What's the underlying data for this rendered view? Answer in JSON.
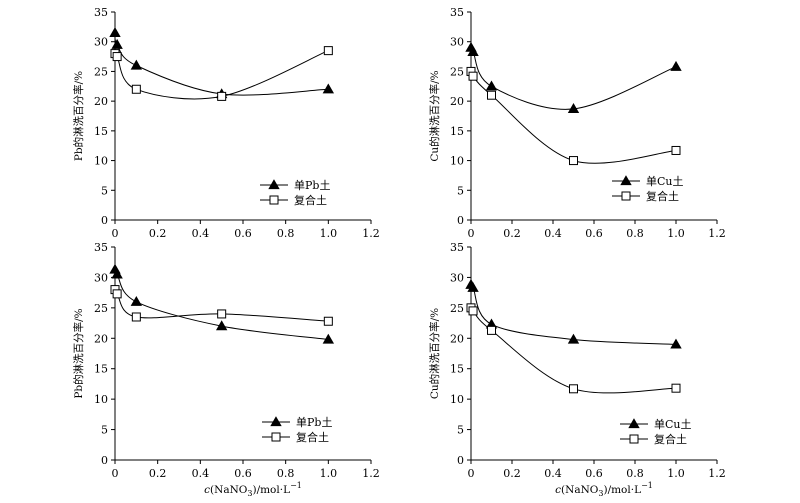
{
  "chart_data": [
    {
      "type": "line",
      "ylabel": "Pb的淋洗百分率/%",
      "xlabel": "",
      "xlim": [
        0,
        1.2
      ],
      "ylim": [
        0,
        35
      ],
      "xticks": [
        "0",
        "0.2",
        "0.4",
        "0.6",
        "0.8",
        "1.0",
        "1.2"
      ],
      "yticks": [
        "0",
        "5",
        "10",
        "15",
        "20",
        "25",
        "30",
        "35"
      ],
      "legend_position": "bottom-right",
      "series": [
        {
          "name": "单Pb土",
          "marker": "filled-triangle",
          "x": [
            0,
            0.01,
            0.1,
            0.5,
            1.0
          ],
          "y": [
            31.5,
            29.5,
            26.0,
            21.2,
            22.0
          ]
        },
        {
          "name": "复合土",
          "marker": "open-square",
          "x": [
            0,
            0.01,
            0.1,
            0.5,
            1.0
          ],
          "y": [
            28.0,
            27.5,
            22.0,
            20.8,
            28.5
          ]
        }
      ]
    },
    {
      "type": "line",
      "ylabel": "Cu的淋洗百分率/%",
      "xlabel": "",
      "xlim": [
        0,
        1.2
      ],
      "ylim": [
        0,
        35
      ],
      "xticks": [
        "0",
        "0.2",
        "0.4",
        "0.6",
        "0.8",
        "1.0",
        "1.2"
      ],
      "yticks": [
        "0",
        "5",
        "10",
        "15",
        "20",
        "25",
        "30",
        "35"
      ],
      "legend_position": "bottom-right",
      "series": [
        {
          "name": "单Cu土",
          "marker": "filled-triangle",
          "x": [
            0,
            0.01,
            0.1,
            0.5,
            1.0
          ],
          "y": [
            29.0,
            28.3,
            22.5,
            18.7,
            25.8
          ]
        },
        {
          "name": "复合土",
          "marker": "open-square",
          "x": [
            0,
            0.01,
            0.1,
            0.5,
            1.0
          ],
          "y": [
            25.0,
            24.2,
            21.0,
            10.0,
            11.7
          ]
        }
      ]
    },
    {
      "type": "line",
      "ylabel": "Pb的淋洗百分率/%",
      "xlabel": "c(NaNO3)/mol·L−1",
      "xlim": [
        0,
        1.2
      ],
      "ylim": [
        0,
        35
      ],
      "xticks": [
        "0",
        "0.2",
        "0.4",
        "0.6",
        "0.8",
        "1.0",
        "1.2"
      ],
      "yticks": [
        "0",
        "5",
        "10",
        "15",
        "20",
        "25",
        "30",
        "35"
      ],
      "legend_position": "bottom-right",
      "series": [
        {
          "name": "单Pb土",
          "marker": "filled-triangle",
          "x": [
            0,
            0.01,
            0.1,
            0.5,
            1.0
          ],
          "y": [
            31.3,
            30.5,
            26.0,
            22.0,
            19.8
          ]
        },
        {
          "name": "复合土",
          "marker": "open-square",
          "x": [
            0,
            0.01,
            0.1,
            0.5,
            1.0
          ],
          "y": [
            28.0,
            27.3,
            23.5,
            24.0,
            22.8
          ]
        }
      ]
    },
    {
      "type": "line",
      "ylabel": "Cu的淋洗百分率/%",
      "xlabel": "c(NaNO3)/mol·L−1",
      "xlim": [
        0,
        1.2
      ],
      "ylim": [
        0,
        35
      ],
      "xticks": [
        "0",
        "0.2",
        "0.4",
        "0.6",
        "0.8",
        "1.0",
        "1.2"
      ],
      "yticks": [
        "0",
        "5",
        "10",
        "15",
        "20",
        "25",
        "30",
        "35"
      ],
      "legend_position": "bottom-right",
      "series": [
        {
          "name": "单Cu土",
          "marker": "filled-triangle",
          "x": [
            0,
            0.01,
            0.1,
            0.5,
            1.0
          ],
          "y": [
            28.8,
            28.3,
            22.3,
            19.8,
            19.0
          ]
        },
        {
          "name": "复合土",
          "marker": "open-square",
          "x": [
            0,
            0.01,
            0.1,
            0.5,
            1.0
          ],
          "y": [
            25.0,
            24.5,
            21.3,
            11.7,
            11.8
          ]
        }
      ]
    }
  ]
}
